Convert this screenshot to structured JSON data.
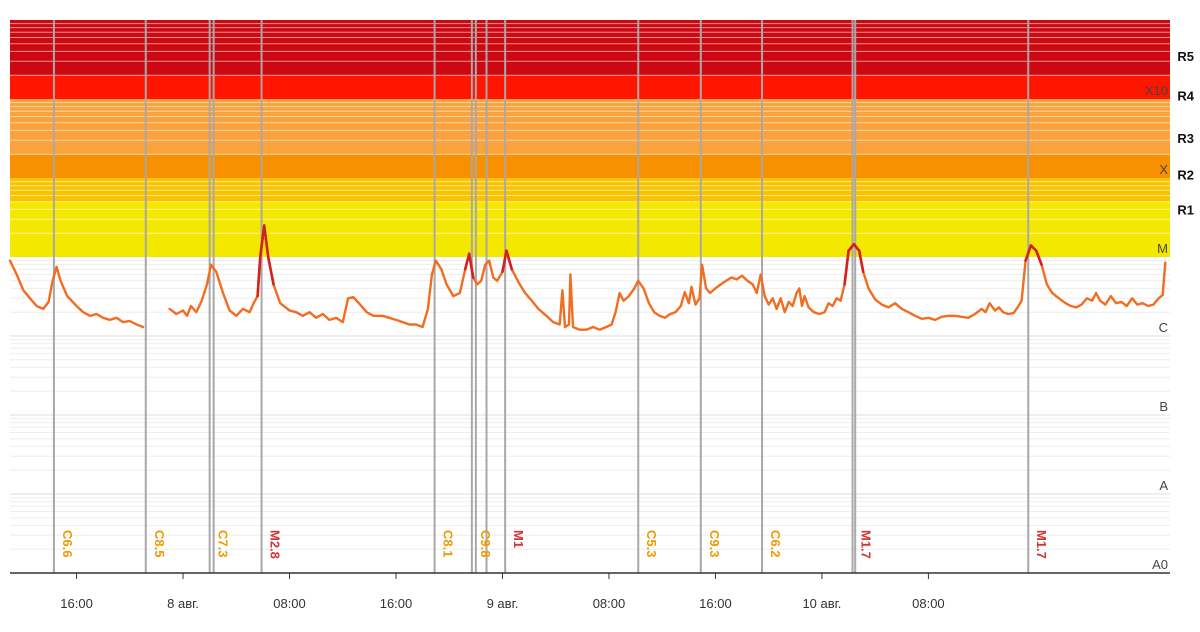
{
  "chart_data": {
    "type": "line",
    "y_scale": "log",
    "ylim": [
      1e-09,
      0.01
    ],
    "x_range_hours": [
      0,
      87
    ],
    "x_ticks": [
      {
        "h": 5,
        "label": "16:00"
      },
      {
        "h": 13,
        "label": "8 авг."
      },
      {
        "h": 21,
        "label": "08:00"
      },
      {
        "h": 29,
        "label": "16:00"
      },
      {
        "h": 37,
        "label": "9 авг."
      },
      {
        "h": 45,
        "label": "08:00"
      },
      {
        "h": 53,
        "label": "16:00"
      },
      {
        "h": 61,
        "label": "10 авг."
      },
      {
        "h": 69,
        "label": "08:00"
      }
    ],
    "class_labels": [
      {
        "label": "X10",
        "value": 0.001
      },
      {
        "label": "X",
        "value": 0.0001
      },
      {
        "label": "M",
        "value": 1e-05
      },
      {
        "label": "C",
        "value": 1e-06
      },
      {
        "label": "B",
        "value": 1e-07
      },
      {
        "label": "A",
        "value": 1e-08
      },
      {
        "label": "A0",
        "value": 1e-09
      }
    ],
    "radio_levels": [
      {
        "label": "R5",
        "value": 0.0035
      },
      {
        "label": "R4",
        "value": 0.0011
      },
      {
        "label": "R3",
        "value": 0.00032
      },
      {
        "label": "R2",
        "value": 0.00011
      },
      {
        "label": "R1",
        "value": 4e-05
      }
    ],
    "bands": [
      {
        "from": 1e-05,
        "to": 5e-05,
        "color": "#f5e800"
      },
      {
        "from": 5e-05,
        "to": 0.0001,
        "color": "#f8c400"
      },
      {
        "from": 0.0001,
        "to": 0.0002,
        "color": "#f99000"
      },
      {
        "from": 0.0002,
        "to": 0.001,
        "color": "#fba23c"
      },
      {
        "from": 0.001,
        "to": 0.002,
        "color": "#ff1500"
      },
      {
        "from": 0.002,
        "to": 0.01,
        "color": "#cc0812"
      }
    ],
    "flares": [
      {
        "label": "C6.6",
        "h": 3.3,
        "color": "#ee9a00"
      },
      {
        "label": "C8.5",
        "h": 10.2,
        "color": "#ee9a00"
      },
      {
        "label": "C7.3",
        "h": 15.0,
        "color": "#ee9a00"
      },
      {
        "label": "M2.8",
        "h": 18.9,
        "color": "#d33535"
      },
      {
        "label": "C8.1",
        "h": 31.9,
        "color": "#ee9a00"
      },
      {
        "label": "C9.8",
        "h": 34.7,
        "color": "#ee9a00"
      },
      {
        "label": "M1",
        "h": 37.2,
        "color": "#d33535"
      },
      {
        "label": "C5.3",
        "h": 47.2,
        "color": "#ee9a00"
      },
      {
        "label": "C9.3",
        "h": 51.9,
        "color": "#ee9a00"
      },
      {
        "label": "C6.2",
        "h": 56.5,
        "color": "#ee9a00"
      },
      {
        "label": "M1.7",
        "h": 63.3,
        "color": "#d33535"
      },
      {
        "label": "M1.7",
        "h": 76.5,
        "color": "#d33535"
      }
    ],
    "extra_flare_lines_h": [
      15.3,
      35.0,
      35.8,
      63.5
    ],
    "series": [
      {
        "line_color": "#f26d21",
        "segments": [
          [
            [
              0.0,
              9e-06
            ],
            [
              0.5,
              6e-06
            ],
            [
              1.0,
              3.8e-06
            ],
            [
              1.5,
              3e-06
            ],
            [
              2.0,
              2.4e-06
            ],
            [
              2.5,
              2.2e-06
            ],
            [
              2.9,
              2.7e-06
            ],
            [
              3.2,
              5e-06
            ],
            [
              3.5,
              7.5e-06
            ],
            [
              3.8,
              5e-06
            ],
            [
              4.3,
              3.2e-06
            ],
            [
              5.0,
              2.4e-06
            ],
            [
              5.5,
              2e-06
            ],
            [
              6.0,
              1.8e-06
            ],
            [
              6.5,
              1.9e-06
            ],
            [
              7.0,
              1.7e-06
            ],
            [
              7.5,
              1.6e-06
            ],
            [
              8.0,
              1.7e-06
            ],
            [
              8.5,
              1.5e-06
            ],
            [
              9.0,
              1.55e-06
            ],
            [
              9.5,
              1.4e-06
            ],
            [
              10.0,
              1.3e-06
            ]
          ],
          [
            [
              12.0,
              2.2e-06
            ],
            [
              12.5,
              1.9e-06
            ],
            [
              13.0,
              2.1e-06
            ],
            [
              13.3,
              1.8e-06
            ],
            [
              13.6,
              2.4e-06
            ],
            [
              14.0,
              2e-06
            ],
            [
              14.4,
              2.8e-06
            ],
            [
              14.8,
              4.5e-06
            ],
            [
              15.1,
              8e-06
            ],
            [
              15.5,
              6.5e-06
            ],
            [
              16.0,
              3.5e-06
            ],
            [
              16.5,
              2.1e-06
            ],
            [
              17.0,
              1.8e-06
            ],
            [
              17.5,
              2.2e-06
            ],
            [
              18.0,
              2e-06
            ],
            [
              18.3,
              2.6e-06
            ],
            [
              18.6,
              3.2e-06
            ],
            [
              18.8,
              1e-05
            ],
            [
              19.1,
              2.5e-05
            ],
            [
              19.4,
              1e-05
            ],
            [
              19.8,
              4.5e-06
            ],
            [
              20.3,
              2.6e-06
            ],
            [
              21.0,
              2.1e-06
            ],
            [
              21.5,
              2e-06
            ],
            [
              22.0,
              1.8e-06
            ],
            [
              22.5,
              2e-06
            ],
            [
              23.0,
              1.7e-06
            ],
            [
              23.5,
              1.9e-06
            ],
            [
              24.0,
              1.6e-06
            ],
            [
              24.5,
              1.7e-06
            ],
            [
              25.0,
              1.5e-06
            ],
            [
              25.4,
              3e-06
            ],
            [
              25.8,
              3.1e-06
            ],
            [
              26.3,
              2.5e-06
            ],
            [
              26.8,
              2e-06
            ],
            [
              27.3,
              1.8e-06
            ],
            [
              28.0,
              1.8e-06
            ],
            [
              28.5,
              1.7e-06
            ],
            [
              29.0,
              1.6e-06
            ],
            [
              29.5,
              1.5e-06
            ],
            [
              30.0,
              1.4e-06
            ],
            [
              30.5,
              1.4e-06
            ],
            [
              31.0,
              1.3e-06
            ],
            [
              31.4,
              2.2e-06
            ],
            [
              31.7,
              6e-06
            ],
            [
              32.0,
              9e-06
            ],
            [
              32.4,
              7e-06
            ],
            [
              32.8,
              4.5e-06
            ],
            [
              33.3,
              3.2e-06
            ],
            [
              33.8,
              3.5e-06
            ],
            [
              34.2,
              7e-06
            ],
            [
              34.5,
              1.1e-05
            ],
            [
              34.8,
              5.5e-06
            ],
            [
              35.1,
              4.5e-06
            ],
            [
              35.4,
              5e-06
            ],
            [
              35.7,
              8e-06
            ],
            [
              36.0,
              9e-06
            ],
            [
              36.3,
              5.5e-06
            ],
            [
              36.6,
              5e-06
            ],
            [
              37.0,
              6.5e-06
            ],
            [
              37.3,
              1.2e-05
            ],
            [
              37.7,
              7e-06
            ],
            [
              38.2,
              4.8e-06
            ],
            [
              38.7,
              3.5e-06
            ],
            [
              39.2,
              2.8e-06
            ],
            [
              39.7,
              2.2e-06
            ],
            [
              40.3,
              1.8e-06
            ],
            [
              40.8,
              1.5e-06
            ],
            [
              41.3,
              1.4e-06
            ],
            [
              41.5,
              3.8e-06
            ],
            [
              41.7,
              1.3e-06
            ],
            [
              42.0,
              1.4e-06
            ],
            [
              42.1,
              6e-06
            ],
            [
              42.3,
              1.3e-06
            ],
            [
              42.8,
              1.2e-06
            ],
            [
              43.3,
              1.2e-06
            ],
            [
              43.8,
              1.3e-06
            ],
            [
              44.3,
              1.2e-06
            ],
            [
              44.8,
              1.3e-06
            ],
            [
              45.2,
              1.4e-06
            ],
            [
              45.5,
              2e-06
            ],
            [
              45.8,
              3.5e-06
            ],
            [
              46.1,
              2.8e-06
            ],
            [
              46.5,
              3.2e-06
            ],
            [
              46.9,
              4e-06
            ],
            [
              47.2,
              5e-06
            ],
            [
              47.6,
              4e-06
            ],
            [
              48.0,
              2.6e-06
            ],
            [
              48.4,
              2e-06
            ],
            [
              48.8,
              1.8e-06
            ],
            [
              49.2,
              1.7e-06
            ],
            [
              49.6,
              1.9e-06
            ],
            [
              50.0,
              2e-06
            ],
            [
              50.4,
              2.4e-06
            ],
            [
              50.7,
              3.6e-06
            ],
            [
              51.0,
              2.6e-06
            ],
            [
              51.2,
              4.2e-06
            ],
            [
              51.5,
              2.5e-06
            ],
            [
              51.8,
              3e-06
            ],
            [
              52.0,
              8e-06
            ],
            [
              52.3,
              4e-06
            ],
            [
              52.6,
              3.5e-06
            ],
            [
              53.0,
              4e-06
            ],
            [
              53.4,
              4.5e-06
            ],
            [
              53.8,
              5e-06
            ],
            [
              54.2,
              5.5e-06
            ],
            [
              54.6,
              5.2e-06
            ],
            [
              55.0,
              5.8e-06
            ],
            [
              55.4,
              5e-06
            ],
            [
              55.8,
              4.5e-06
            ],
            [
              56.1,
              3.5e-06
            ],
            [
              56.4,
              6e-06
            ],
            [
              56.7,
              3.2e-06
            ],
            [
              57.0,
              2.5e-06
            ],
            [
              57.3,
              3e-06
            ],
            [
              57.6,
              2.2e-06
            ],
            [
              57.9,
              3e-06
            ],
            [
              58.2,
              2e-06
            ],
            [
              58.5,
              2.7e-06
            ],
            [
              58.8,
              2.4e-06
            ],
            [
              59.1,
              3.5e-06
            ],
            [
              59.3,
              4e-06
            ],
            [
              59.5,
              2.4e-06
            ],
            [
              59.7,
              3.2e-06
            ],
            [
              60.0,
              2.3e-06
            ],
            [
              60.4,
              2e-06
            ],
            [
              60.8,
              1.9e-06
            ],
            [
              61.2,
              2e-06
            ],
            [
              61.5,
              2.6e-06
            ],
            [
              61.8,
              2.4e-06
            ],
            [
              62.1,
              3e-06
            ],
            [
              62.4,
              2.8e-06
            ],
            [
              62.7,
              4.5e-06
            ],
            [
              63.0,
              1.2e-05
            ],
            [
              63.4,
              1.45e-05
            ],
            [
              63.8,
              1.2e-05
            ],
            [
              64.1,
              6.5e-06
            ],
            [
              64.5,
              4e-06
            ],
            [
              65.0,
              2.9e-06
            ],
            [
              65.5,
              2.5e-06
            ],
            [
              66.0,
              2.3e-06
            ],
            [
              66.5,
              2.6e-06
            ],
            [
              67.0,
              2.2e-06
            ],
            [
              67.5,
              2e-06
            ],
            [
              68.0,
              1.8e-06
            ],
            [
              68.5,
              1.65e-06
            ],
            [
              69.0,
              1.7e-06
            ],
            [
              69.5,
              1.6e-06
            ],
            [
              70.0,
              1.75e-06
            ],
            [
              70.5,
              1.8e-06
            ],
            [
              71.0,
              1.8e-06
            ],
            [
              71.5,
              1.75e-06
            ],
            [
              72.0,
              1.7e-06
            ],
            [
              72.5,
              1.9e-06
            ],
            [
              73.0,
              2.2e-06
            ],
            [
              73.3,
              2e-06
            ],
            [
              73.6,
              2.6e-06
            ],
            [
              74.0,
              2.1e-06
            ],
            [
              74.3,
              2.3e-06
            ],
            [
              74.6,
              2e-06
            ],
            [
              75.0,
              1.9e-06
            ],
            [
              75.4,
              1.95e-06
            ],
            [
              75.7,
              2.3e-06
            ],
            [
              76.0,
              2.8e-06
            ],
            [
              76.3,
              9e-06
            ],
            [
              76.7,
              1.4e-05
            ],
            [
              77.1,
              1.2e-05
            ],
            [
              77.5,
              8e-06
            ],
            [
              77.9,
              4.5e-06
            ],
            [
              78.3,
              3.5e-06
            ],
            [
              78.8,
              3e-06
            ],
            [
              79.3,
              2.6e-06
            ],
            [
              79.7,
              2.4e-06
            ],
            [
              80.1,
              2.3e-06
            ],
            [
              80.5,
              2.5e-06
            ],
            [
              80.9,
              3e-06
            ],
            [
              81.3,
              2.8e-06
            ],
            [
              81.6,
              3.5e-06
            ],
            [
              81.9,
              2.8e-06
            ],
            [
              82.3,
              2.5e-06
            ],
            [
              82.7,
              3.2e-06
            ],
            [
              83.1,
              2.6e-06
            ],
            [
              83.5,
              2.7e-06
            ],
            [
              83.9,
              2.4e-06
            ],
            [
              84.3,
              3e-06
            ],
            [
              84.7,
              2.5e-06
            ],
            [
              85.1,
              2.6e-06
            ],
            [
              85.5,
              2.4e-06
            ],
            [
              85.9,
              2.5e-06
            ],
            [
              86.3,
              3e-06
            ],
            [
              86.6,
              3.3e-06
            ],
            [
              86.8,
              8.5e-06
            ]
          ]
        ]
      }
    ]
  }
}
